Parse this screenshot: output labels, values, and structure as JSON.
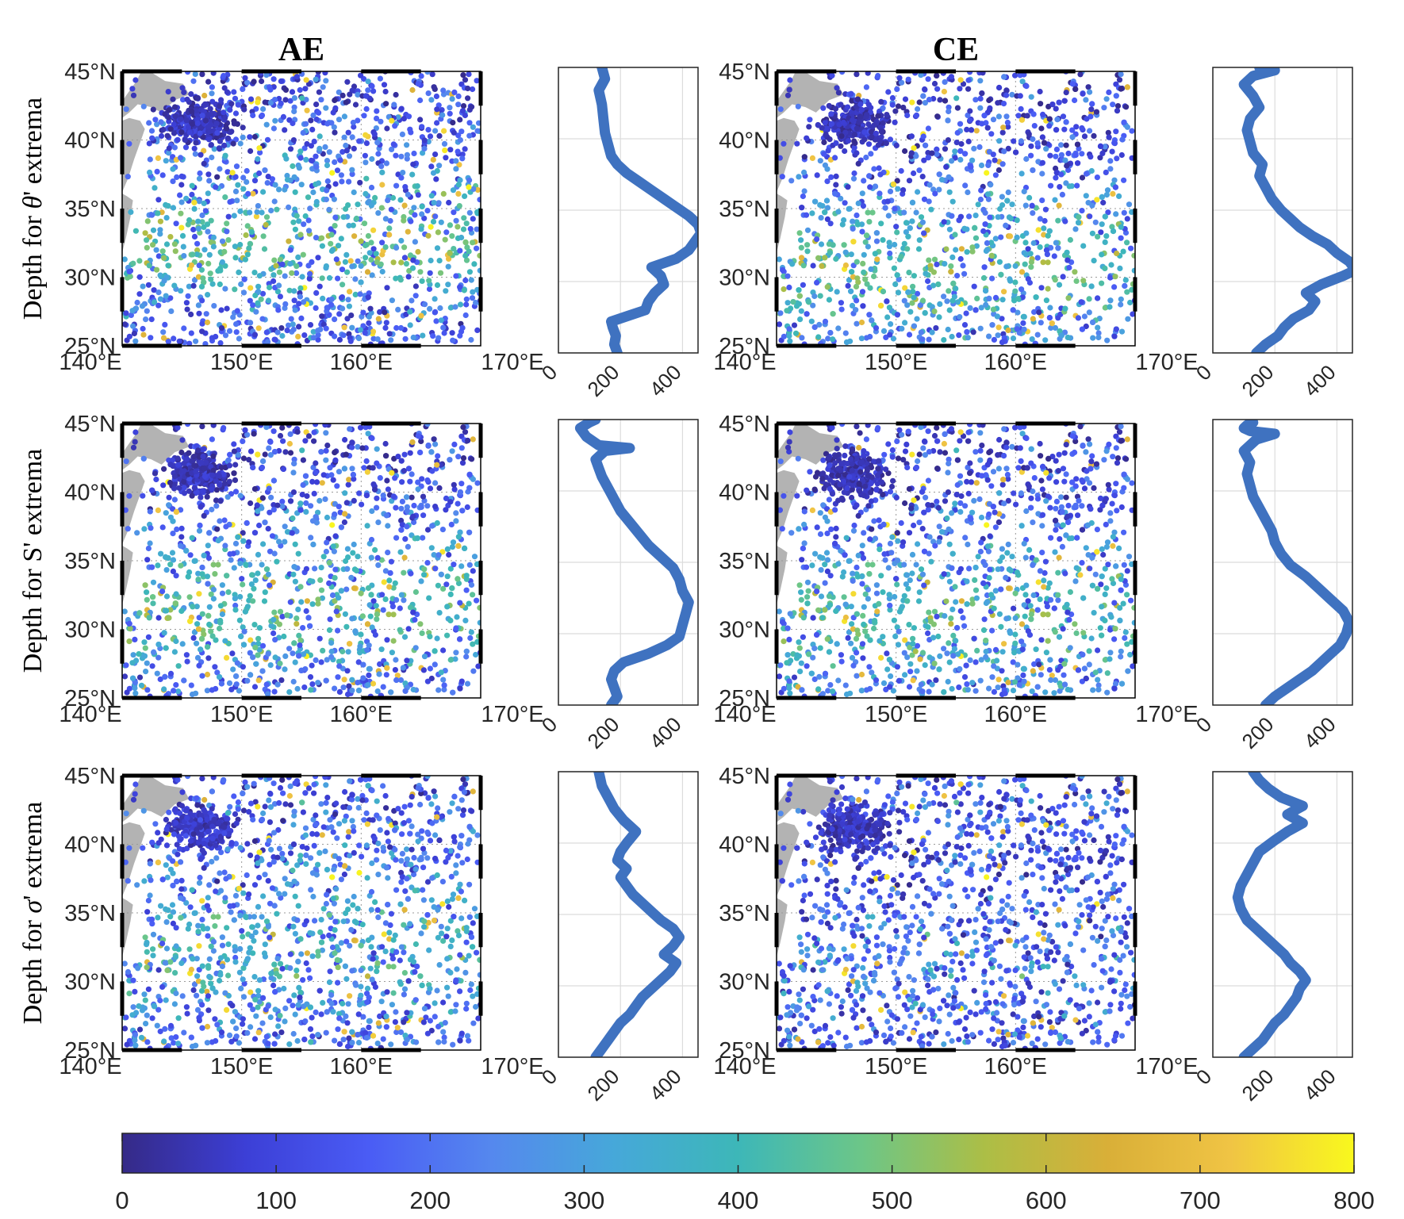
{
  "column_titles": [
    "AE",
    "CE"
  ],
  "row_labels": [
    {
      "prefix": "Depth for ",
      "symbol": "θ",
      "suffix": "' extrema",
      "italic": true
    },
    {
      "prefix": "Depth for ",
      "symbol": "S",
      "suffix": "' extrema",
      "italic": false
    },
    {
      "prefix": "Depth for ",
      "symbol": "σ",
      "suffix": "' extrema",
      "italic": true
    }
  ],
  "map_axes": {
    "lon_range": [
      140,
      170
    ],
    "lat_range": [
      25,
      45
    ],
    "lon_ticks": [
      140,
      150,
      160,
      170
    ],
    "lat_ticks": [
      25,
      30,
      35,
      40,
      45
    ],
    "lon_tick_labels": [
      "140°E",
      "150°E",
      "160°E",
      "170°E"
    ],
    "lat_tick_labels": [
      "25°N",
      "30°N",
      "35°N",
      "40°N",
      "45°N"
    ],
    "land_color": "#b3b3b3",
    "gridlines": "dotted"
  },
  "profile_axes": {
    "x_range": [
      0,
      450
    ],
    "y_range": [
      25,
      45
    ],
    "x_ticks": [
      0,
      200,
      400
    ],
    "x_tick_labels": [
      "0",
      "200",
      "400"
    ],
    "line_color": "#3f72c0",
    "grid": true
  },
  "colorbar": {
    "range": [
      0,
      800
    ],
    "ticks": [
      0,
      100,
      200,
      300,
      400,
      500,
      600,
      700,
      800
    ],
    "tick_labels": [
      "0",
      "100",
      "200",
      "300",
      "400",
      "500",
      "600",
      "700",
      "800"
    ],
    "colormap": "parula",
    "stops": [
      "#352a87",
      "#3c3fd6",
      "#4a5cf5",
      "#5588ee",
      "#46a8d9",
      "#3db7b8",
      "#6cc688",
      "#acbe46",
      "#d9af38",
      "#f0c444",
      "#f9f81d"
    ]
  },
  "chart_data": [
    {
      "type": "scatter",
      "panel": "AE θ' map",
      "x_label": "",
      "y_label": "",
      "xlim": [
        140,
        170
      ],
      "ylim": [
        25,
        45
      ],
      "color_scale": [
        0,
        800
      ],
      "depth_by_lat": [
        [
          25,
          160
        ],
        [
          27,
          180
        ],
        [
          29,
          290
        ],
        [
          31,
          430
        ],
        [
          33,
          470
        ],
        [
          35,
          350
        ],
        [
          37,
          260
        ],
        [
          39,
          210
        ],
        [
          41,
          170
        ],
        [
          43,
          140
        ],
        [
          45,
          120
        ]
      ]
    },
    {
      "type": "line",
      "panel": "AE θ' profile",
      "xlim": [
        0,
        450
      ],
      "ylim": [
        25,
        45
      ],
      "x": [
        190,
        180,
        185,
        175,
        170,
        225,
        280,
        290,
        310,
        340,
        330,
        300,
        380,
        420,
        440,
        460,
        450,
        420,
        380,
        340,
        300,
        260,
        220,
        190,
        170,
        160,
        150,
        145,
        140,
        130,
        150,
        140
      ],
      "y": [
        25.0,
        25.6,
        26.2,
        26.8,
        27.2,
        27.6,
        28.0,
        28.6,
        29.2,
        29.8,
        30.4,
        31.0,
        31.6,
        32.2,
        32.8,
        33.4,
        34.0,
        34.6,
        35.2,
        35.8,
        36.4,
        37.0,
        37.6,
        38.2,
        38.8,
        39.6,
        40.4,
        41.4,
        42.4,
        43.4,
        44.2,
        45.0
      ]
    },
    {
      "type": "scatter",
      "panel": "CE θ' map",
      "xlim": [
        140,
        170
      ],
      "ylim": [
        25,
        45
      ],
      "color_scale": [
        0,
        800
      ],
      "depth_by_lat": [
        [
          25,
          220
        ],
        [
          27,
          300
        ],
        [
          29,
          400
        ],
        [
          31,
          440
        ],
        [
          33,
          380
        ],
        [
          35,
          300
        ],
        [
          37,
          220
        ],
        [
          39,
          160
        ],
        [
          41,
          130
        ],
        [
          43,
          130
        ],
        [
          45,
          140
        ]
      ]
    },
    {
      "type": "line",
      "panel": "CE θ' profile",
      "xlim": [
        0,
        450
      ],
      "ylim": [
        25,
        45
      ],
      "x": [
        140,
        170,
        210,
        230,
        260,
        310,
        330,
        300,
        350,
        420,
        460,
        440,
        400,
        370,
        320,
        280,
        250,
        220,
        190,
        170,
        150,
        160,
        130,
        120,
        110,
        120,
        150,
        130,
        100,
        130,
        200,
        150
      ],
      "y": [
        25.0,
        25.6,
        26.2,
        26.8,
        27.4,
        28.0,
        28.6,
        29.2,
        29.8,
        30.4,
        30.8,
        31.4,
        32.0,
        32.6,
        33.2,
        33.8,
        34.4,
        35.0,
        35.8,
        36.6,
        37.4,
        38.2,
        39.0,
        39.8,
        40.6,
        41.4,
        42.2,
        43.0,
        43.8,
        44.4,
        44.8,
        45.0
      ]
    },
    {
      "type": "scatter",
      "panel": "AE S' map",
      "xlim": [
        140,
        170
      ],
      "ylim": [
        25,
        45
      ],
      "color_scale": [
        0,
        800
      ],
      "depth_by_lat": [
        [
          25,
          180
        ],
        [
          27,
          230
        ],
        [
          29,
          380
        ],
        [
          31,
          420
        ],
        [
          33,
          420
        ],
        [
          35,
          330
        ],
        [
          37,
          260
        ],
        [
          39,
          200
        ],
        [
          41,
          150
        ],
        [
          43,
          130
        ],
        [
          45,
          120
        ]
      ]
    },
    {
      "type": "line",
      "panel": "AE S' profile",
      "xlim": [
        0,
        450
      ],
      "ylim": [
        25,
        45
      ],
      "x": [
        170,
        190,
        180,
        170,
        180,
        210,
        290,
        350,
        390,
        400,
        410,
        420,
        400,
        390,
        370,
        330,
        290,
        260,
        230,
        200,
        180,
        160,
        140,
        130,
        120,
        150,
        230,
        130,
        90,
        70,
        100,
        120
      ],
      "y": [
        25.0,
        25.6,
        26.2,
        26.8,
        27.4,
        28.0,
        28.6,
        29.2,
        29.8,
        30.6,
        31.4,
        32.2,
        33.0,
        33.8,
        34.6,
        35.4,
        36.2,
        37.0,
        37.8,
        38.6,
        39.4,
        40.2,
        41.0,
        41.6,
        42.2,
        42.8,
        43.0,
        43.2,
        43.8,
        44.4,
        44.8,
        45.0
      ]
    },
    {
      "type": "scatter",
      "panel": "CE S' map",
      "xlim": [
        140,
        170
      ],
      "ylim": [
        25,
        45
      ],
      "color_scale": [
        0,
        800
      ],
      "depth_by_lat": [
        [
          25,
          220
        ],
        [
          27,
          290
        ],
        [
          29,
          380
        ],
        [
          31,
          420
        ],
        [
          33,
          380
        ],
        [
          35,
          300
        ],
        [
          37,
          230
        ],
        [
          39,
          180
        ],
        [
          41,
          140
        ],
        [
          43,
          130
        ],
        [
          45,
          130
        ]
      ]
    },
    {
      "type": "line",
      "panel": "CE S' profile",
      "xlim": [
        0,
        450
      ],
      "ylim": [
        25,
        45
      ],
      "x": [
        170,
        200,
        240,
        280,
        320,
        350,
        380,
        410,
        430,
        440,
        420,
        380,
        340,
        300,
        250,
        220,
        200,
        190,
        170,
        150,
        130,
        120,
        110,
        120,
        100,
        140,
        200,
        120,
        100,
        110,
        130,
        120
      ],
      "y": [
        25.0,
        25.6,
        26.2,
        26.8,
        27.4,
        28.0,
        28.6,
        29.2,
        30.0,
        30.8,
        31.6,
        32.4,
        33.2,
        34.0,
        34.8,
        35.6,
        36.4,
        37.2,
        38.0,
        38.8,
        39.6,
        40.4,
        41.2,
        42.0,
        42.8,
        43.6,
        44.0,
        44.2,
        44.4,
        44.6,
        44.8,
        45.0
      ]
    },
    {
      "type": "scatter",
      "panel": "AE σ' map",
      "xlim": [
        140,
        170
      ],
      "ylim": [
        25,
        45
      ],
      "color_scale": [
        0,
        800
      ],
      "depth_by_lat": [
        [
          25,
          180
        ],
        [
          27,
          230
        ],
        [
          29,
          300
        ],
        [
          31,
          360
        ],
        [
          33,
          370
        ],
        [
          35,
          320
        ],
        [
          37,
          260
        ],
        [
          39,
          230
        ],
        [
          41,
          200
        ],
        [
          43,
          180
        ],
        [
          45,
          160
        ]
      ]
    },
    {
      "type": "line",
      "panel": "AE σ' profile",
      "xlim": [
        0,
        450
      ],
      "ylim": [
        25,
        45
      ],
      "x": [
        120,
        140,
        160,
        180,
        200,
        230,
        250,
        270,
        300,
        330,
        360,
        380,
        340,
        370,
        390,
        370,
        330,
        300,
        270,
        240,
        220,
        200,
        220,
        190,
        200,
        220,
        250,
        210,
        180,
        160,
        140,
        130
      ],
      "y": [
        25.0,
        25.6,
        26.2,
        26.8,
        27.4,
        28.0,
        28.6,
        29.2,
        29.8,
        30.4,
        31.0,
        31.6,
        32.2,
        32.8,
        33.4,
        34.0,
        34.6,
        35.2,
        35.8,
        36.4,
        37.0,
        37.6,
        38.2,
        38.8,
        39.4,
        40.0,
        40.8,
        41.6,
        42.4,
        43.2,
        44.0,
        45.0
      ]
    },
    {
      "type": "scatter",
      "panel": "CE σ' map",
      "xlim": [
        140,
        170
      ],
      "ylim": [
        25,
        45
      ],
      "color_scale": [
        0,
        800
      ],
      "depth_by_lat": [
        [
          25,
          150
        ],
        [
          27,
          180
        ],
        [
          29,
          220
        ],
        [
          31,
          260
        ],
        [
          33,
          240
        ],
        [
          35,
          190
        ],
        [
          37,
          160
        ],
        [
          39,
          140
        ],
        [
          41,
          170
        ],
        [
          43,
          190
        ],
        [
          45,
          150
        ]
      ]
    },
    {
      "type": "line",
      "panel": "CE σ' profile",
      "xlim": [
        0,
        450
      ],
      "ylim": [
        25,
        45
      ],
      "x": [
        100,
        130,
        160,
        180,
        200,
        230,
        250,
        270,
        280,
        300,
        280,
        250,
        230,
        200,
        170,
        140,
        110,
        90,
        80,
        90,
        110,
        130,
        150,
        200,
        240,
        290,
        240,
        290,
        220,
        180,
        150,
        130
      ],
      "y": [
        25.0,
        25.6,
        26.2,
        26.8,
        27.4,
        28.0,
        28.6,
        29.2,
        29.8,
        30.4,
        31.0,
        31.6,
        32.2,
        32.8,
        33.4,
        34.0,
        34.6,
        35.4,
        36.2,
        37.0,
        37.8,
        38.6,
        39.4,
        40.2,
        40.8,
        41.4,
        42.0,
        42.6,
        43.2,
        43.8,
        44.4,
        45.0
      ]
    },
    {
      "type": "heatmap",
      "panel": "colorbar",
      "range": [
        0,
        800
      ],
      "ticks": [
        0,
        100,
        200,
        300,
        400,
        500,
        600,
        700,
        800
      ]
    }
  ]
}
